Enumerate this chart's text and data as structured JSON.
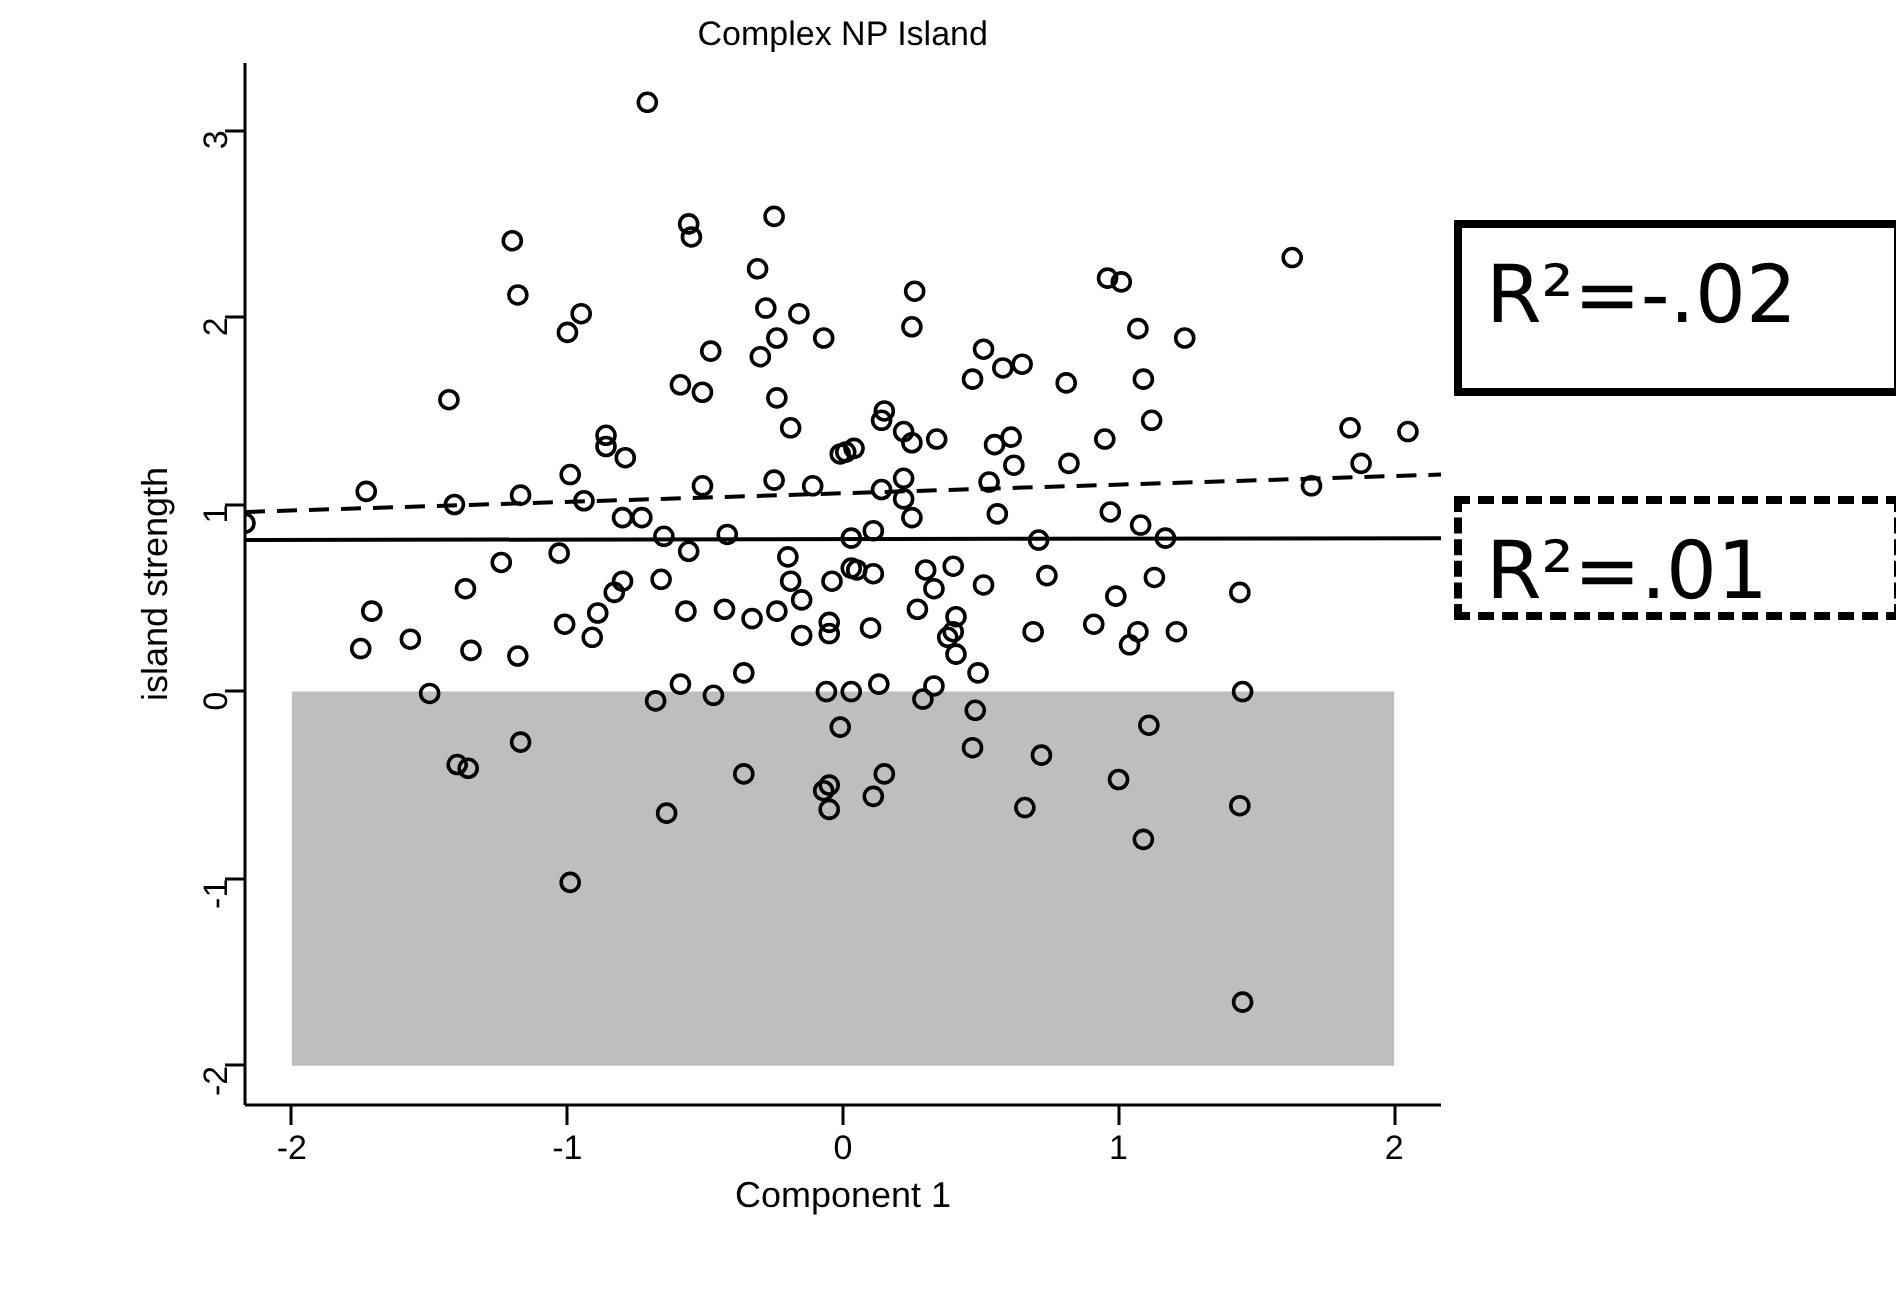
{
  "chart_data": {
    "type": "scatter",
    "title": "Complex NP Island",
    "xlabel": "Component 1",
    "ylabel": "island strength",
    "xlim": [
      -2.17,
      2.17
    ],
    "ylim": [
      -2.21,
      3.36
    ],
    "xticks": [
      -2,
      -1,
      0,
      1,
      2
    ],
    "yticks": [
      -2,
      -1,
      0,
      1,
      2,
      3
    ],
    "grid": false,
    "bands": [
      {
        "axis": "y",
        "from": -2,
        "to": 0,
        "color": "#bebebe"
      }
    ],
    "annotations": [
      "R²=-.02",
      "R²=.01"
    ],
    "series": [
      {
        "marker": "circle",
        "color": "#000000",
        "x": [
          -0.71,
          -1.2,
          -1.18,
          -1.43,
          -0.95,
          -1.0,
          -0.56,
          -0.55,
          -0.25,
          -0.31,
          -0.28,
          -0.24,
          -0.3,
          -0.48,
          -0.59,
          -0.51,
          -0.24,
          -0.19,
          -0.16,
          -0.86,
          -0.86,
          -0.79,
          -0.99,
          -1.73,
          -1.17,
          -1.41,
          -0.94,
          -0.51,
          -0.25,
          -0.8,
          -0.73,
          -0.65,
          -0.42,
          -2.17,
          1.63,
          0.96,
          1.01,
          1.07,
          1.24,
          1.09,
          1.12,
          0.81,
          0.82,
          0.95,
          0.51,
          0.58,
          0.65,
          0.47,
          0.55,
          0.61,
          0.62,
          0.53,
          0.56,
          0.26,
          0.25,
          -0.07,
          0.15,
          0.14,
          0.22,
          0.25,
          0.34,
          -0.01,
          0.04,
          0.01,
          -0.11,
          0.14,
          0.22,
          0.22,
          0.25,
          0.11,
          0.03,
          0.71,
          0.97,
          1.08,
          1.17,
          1.7,
          1.84,
          1.88,
          2.05,
          -1.24,
          -1.03,
          -1.37,
          -1.71,
          -1.75,
          -1.57,
          -1.35,
          -1.18,
          -1.01,
          -0.91,
          -0.89,
          -0.83,
          -0.8,
          -0.66,
          -0.56,
          -0.57,
          -0.43,
          -0.33,
          -0.24,
          -0.2,
          -0.19,
          -0.15,
          -0.15,
          -0.36,
          -0.59,
          -0.68,
          -0.47,
          -1.5,
          -1.17,
          -1.4,
          -1.36,
          -0.36,
          -0.64,
          -0.99,
          -0.04,
          -0.05,
          -0.05,
          0.03,
          0.05,
          0.11,
          0.1,
          0.27,
          0.3,
          0.33,
          0.4,
          0.51,
          0.41,
          0.4,
          0.38,
          0.41,
          0.49,
          0.74,
          0.69,
          0.91,
          0.99,
          1.13,
          1.07,
          1.04,
          1.21,
          1.44,
          -0.06,
          0.03,
          0.13,
          0.33,
          0.29,
          1.45,
          -0.01,
          0.48,
          0.47,
          0.72,
          1.11,
          0.15,
          0.11,
          -0.05,
          -0.07,
          -0.05,
          0.66,
          1.0,
          1.09,
          1.44,
          1.45
        ],
        "values": [
          3.15,
          2.41,
          2.12,
          1.56,
          2.02,
          1.92,
          2.5,
          2.43,
          2.54,
          2.26,
          2.05,
          1.89,
          1.79,
          1.82,
          1.64,
          1.6,
          1.57,
          1.41,
          2.02,
          1.37,
          1.31,
          1.25,
          1.16,
          1.07,
          1.05,
          1.0,
          1.02,
          1.1,
          1.13,
          0.93,
          0.93,
          0.83,
          0.84,
          0.9,
          2.32,
          2.21,
          2.19,
          1.94,
          1.89,
          1.67,
          1.45,
          1.65,
          1.22,
          1.35,
          1.83,
          1.73,
          1.75,
          1.67,
          1.32,
          1.36,
          1.21,
          1.12,
          0.95,
          2.14,
          1.95,
          1.89,
          1.5,
          1.45,
          1.39,
          1.33,
          1.35,
          1.27,
          1.3,
          1.28,
          1.1,
          1.08,
          1.14,
          1.03,
          0.93,
          0.86,
          0.82,
          0.81,
          0.96,
          0.89,
          0.82,
          1.1,
          1.41,
          1.22,
          1.39,
          0.69,
          0.74,
          0.55,
          0.43,
          0.23,
          0.28,
          0.22,
          0.19,
          0.36,
          0.29,
          0.42,
          0.53,
          0.59,
          0.6,
          0.75,
          0.43,
          0.44,
          0.39,
          0.43,
          0.72,
          0.59,
          0.49,
          0.3,
          0.1,
          0.04,
          -0.05,
          -0.02,
          -0.01,
          -0.27,
          -0.39,
          -0.41,
          -0.44,
          -0.65,
          -1.02,
          0.59,
          0.37,
          0.31,
          0.66,
          0.65,
          0.63,
          0.34,
          0.44,
          0.65,
          0.55,
          0.67,
          0.57,
          0.4,
          0.32,
          0.29,
          0.2,
          0.1,
          0.62,
          0.32,
          0.36,
          0.51,
          0.61,
          0.32,
          0.25,
          0.32,
          0.53,
          0.0,
          0.0,
          0.04,
          0.03,
          -0.04,
          0.0,
          -0.19,
          -0.1,
          -0.3,
          -0.34,
          -0.18,
          -0.44,
          -0.56,
          -0.5,
          -0.53,
          -0.63,
          -0.62,
          -0.47,
          -0.79,
          -0.61,
          -1.66
        ]
      },
      {
        "type": "line",
        "color": "#000000",
        "line_style": "solid",
        "x": [
          -2.17,
          2.17
        ],
        "values": [
          0.81,
          0.82
        ]
      },
      {
        "type": "line",
        "color": "#000000",
        "line_style": "dashed",
        "x": [
          -2.17,
          2.17
        ],
        "values": [
          0.96,
          1.16
        ]
      }
    ]
  }
}
